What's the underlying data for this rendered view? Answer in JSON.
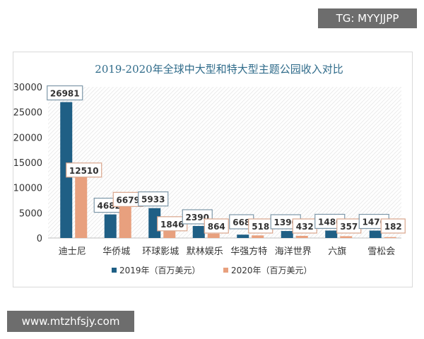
{
  "watermarks": {
    "top": "TG: MYYJJPP",
    "bottom": "www.mtzhfsjy.com"
  },
  "chart_data": {
    "type": "bar",
    "title": "2019-2020年全球中大型和特大型主题公园收入对比",
    "categories": [
      "迪士尼",
      "华侨城",
      "环球影城",
      "默林娱乐",
      "华强方特",
      "海洋世界",
      "六旗",
      "雪松会"
    ],
    "series": [
      {
        "name": "2019年（百万美元）",
        "color": "#1f5f85",
        "values": [
          26981,
          4682,
          5933,
          2390,
          668,
          1390,
          1480,
          1470
        ]
      },
      {
        "name": "2020年（百万美元）",
        "color": "#e8a07e",
        "values": [
          12510,
          6679,
          1846,
          864,
          518,
          432,
          357,
          182
        ]
      }
    ],
    "yticks": [
      0,
      5000,
      10000,
      15000,
      20000,
      25000,
      30000
    ],
    "ylim": [
      0,
      30000
    ],
    "legend": "bottom",
    "grid": false
  }
}
